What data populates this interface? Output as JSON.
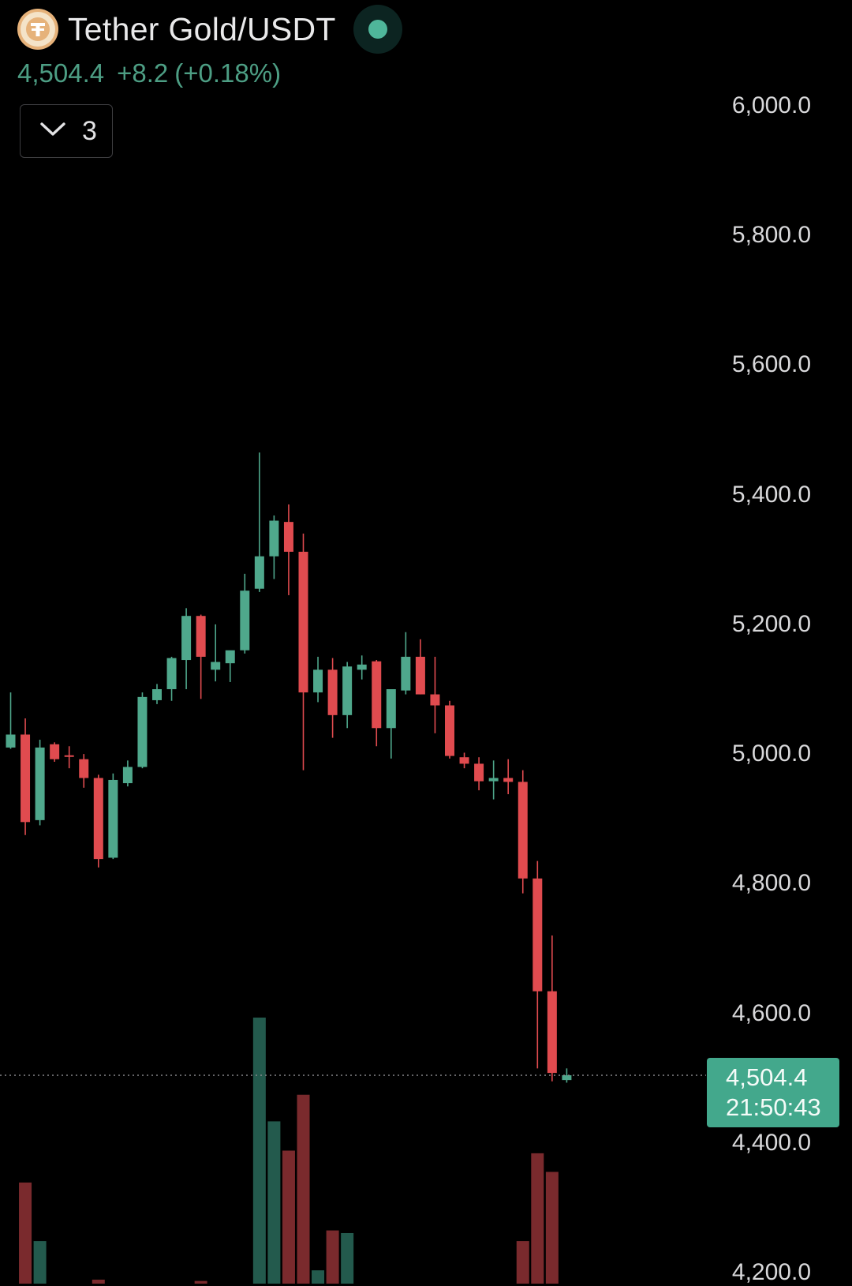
{
  "header": {
    "symbol": "Tether Gold/USDT",
    "logo_icon": "tether-gold-logo",
    "status_icon": "market-open-dot"
  },
  "quote": {
    "last": "4,504.4",
    "change": "+8.2",
    "change_pct": "(+0.18%)"
  },
  "collapse": {
    "icon": "chevron-down-icon",
    "count": "3"
  },
  "price_axis": {
    "labels": [
      "6,000.0",
      "5,800.0",
      "5,600.0",
      "5,400.0",
      "5,200.0",
      "5,000.0",
      "4,800.0",
      "4,600.0",
      "4,400.0",
      "4,200.0"
    ]
  },
  "current_price": {
    "price": "4,504.4",
    "countdown": "21:50:43"
  },
  "colors": {
    "background": "#000000",
    "up": "#4fa88c",
    "down": "#e04b4f",
    "up_volume": "#235a4d",
    "down_volume": "#7a2a2d",
    "price_tag": "#43a88c"
  },
  "chart_data": {
    "type": "candlestick",
    "ylim": [
      4200,
      6000
    ],
    "y_ticks": [
      6000,
      5800,
      5600,
      5400,
      5200,
      5000,
      4800,
      4600,
      4400,
      4200
    ],
    "last_price": 4504.4,
    "candles": [
      {
        "o": 5010,
        "h": 5095,
        "l": 5008,
        "c": 5030
      },
      {
        "o": 5030,
        "h": 5055,
        "l": 4875,
        "c": 4895
      },
      {
        "o": 4898,
        "h": 5022,
        "l": 4890,
        "c": 5010
      },
      {
        "o": 5015,
        "h": 5018,
        "l": 4988,
        "c": 4992
      },
      {
        "o": 4998,
        "h": 5012,
        "l": 4978,
        "c": 4996
      },
      {
        "o": 4992,
        "h": 5000,
        "l": 4948,
        "c": 4963
      },
      {
        "o": 4963,
        "h": 4968,
        "l": 4825,
        "c": 4838
      },
      {
        "o": 4840,
        "h": 4970,
        "l": 4838,
        "c": 4960
      },
      {
        "o": 4955,
        "h": 4990,
        "l": 4950,
        "c": 4980
      },
      {
        "o": 4980,
        "h": 5095,
        "l": 4978,
        "c": 5088
      },
      {
        "o": 5083,
        "h": 5108,
        "l": 5077,
        "c": 5100
      },
      {
        "o": 5100,
        "h": 5150,
        "l": 5082,
        "c": 5148
      },
      {
        "o": 5145,
        "h": 5225,
        "l": 5100,
        "c": 5213
      },
      {
        "o": 5213,
        "h": 5215,
        "l": 5085,
        "c": 5150
      },
      {
        "o": 5130,
        "h": 5200,
        "l": 5112,
        "c": 5142
      },
      {
        "o": 5140,
        "h": 5150,
        "l": 5111,
        "c": 5160
      },
      {
        "o": 5160,
        "h": 5278,
        "l": 5155,
        "c": 5252
      },
      {
        "o": 5255,
        "h": 5465,
        "l": 5250,
        "c": 5305
      },
      {
        "o": 5305,
        "h": 5368,
        "l": 5270,
        "c": 5360
      },
      {
        "o": 5358,
        "h": 5385,
        "l": 5245,
        "c": 5312
      },
      {
        "o": 5312,
        "h": 5340,
        "l": 4975,
        "c": 5095
      },
      {
        "o": 5095,
        "h": 5150,
        "l": 5080,
        "c": 5130
      },
      {
        "o": 5130,
        "h": 5148,
        "l": 5025,
        "c": 5060
      },
      {
        "o": 5060,
        "h": 5142,
        "l": 5040,
        "c": 5135
      },
      {
        "o": 5130,
        "h": 5152,
        "l": 5115,
        "c": 5138
      },
      {
        "o": 5143,
        "h": 5145,
        "l": 5012,
        "c": 5040
      },
      {
        "o": 5040,
        "h": 5098,
        "l": 4993,
        "c": 5100
      },
      {
        "o": 5098,
        "h": 5188,
        "l": 5092,
        "c": 5150
      },
      {
        "o": 5150,
        "h": 5177,
        "l": 5092,
        "c": 5092
      },
      {
        "o": 5092,
        "h": 5150,
        "l": 5032,
        "c": 5075
      },
      {
        "o": 5075,
        "h": 5082,
        "l": 4993,
        "c": 4997
      },
      {
        "o": 4995,
        "h": 5002,
        "l": 4978,
        "c": 4985
      },
      {
        "o": 4985,
        "h": 4995,
        "l": 4944,
        "c": 4958
      },
      {
        "o": 4958,
        "h": 4990,
        "l": 4930,
        "c": 4963
      },
      {
        "o": 4963,
        "h": 4992,
        "l": 4938,
        "c": 4957
      },
      {
        "o": 4957,
        "h": 4975,
        "l": 4785,
        "c": 4808
      },
      {
        "o": 4808,
        "h": 4835,
        "l": 4515,
        "c": 4634
      },
      {
        "o": 4634,
        "h": 4720,
        "l": 4495,
        "c": 4508
      },
      {
        "o": 4497,
        "h": 4515,
        "l": 4493,
        "c": 4504.4
      }
    ],
    "volume": [
      null,
      0.38,
      0.16,
      null,
      null,
      null,
      0.015,
      null,
      null,
      null,
      null,
      null,
      null,
      0.01,
      null,
      null,
      null,
      1.0,
      0.61,
      0.5,
      0.71,
      0.05,
      0.2,
      0.19,
      null,
      null,
      null,
      null,
      null,
      null,
      null,
      null,
      null,
      null,
      null,
      0.16,
      0.49,
      0.42,
      null
    ]
  }
}
